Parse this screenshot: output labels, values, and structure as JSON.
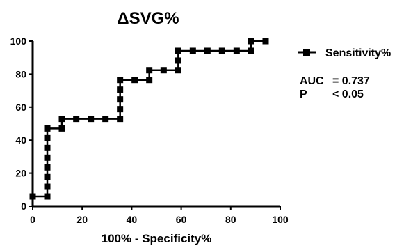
{
  "chart_data": {
    "type": "line",
    "title": "ΔSVG%",
    "xlabel": "100% - Specificity%",
    "ylabel": "",
    "xlim": [
      0,
      100
    ],
    "ylim": [
      0,
      100
    ],
    "x_ticks": [
      0,
      20,
      40,
      60,
      80,
      100
    ],
    "y_ticks": [
      0,
      20,
      40,
      60,
      80,
      100
    ],
    "grid": false,
    "legend_position": "right",
    "color": "#000000",
    "series": [
      {
        "name": "Sensitivity%",
        "step": true,
        "x": [
          0,
          5.9,
          5.9,
          5.9,
          5.9,
          5.9,
          5.9,
          5.9,
          5.9,
          11.8,
          11.8,
          17.6,
          23.5,
          29.4,
          35.3,
          35.3,
          35.3,
          35.3,
          35.3,
          41.2,
          47.1,
          47.1,
          52.9,
          58.8,
          58.8,
          58.8,
          64.7,
          70.6,
          76.5,
          82.4,
          88.2,
          88.2,
          94.1
        ],
        "y": [
          5.9,
          5.9,
          11.8,
          17.6,
          23.5,
          29.4,
          35.3,
          41.2,
          47.1,
          47.1,
          52.9,
          52.9,
          52.9,
          52.9,
          52.9,
          58.8,
          64.7,
          70.6,
          76.5,
          76.5,
          76.5,
          82.4,
          82.4,
          82.4,
          88.2,
          94.1,
          94.1,
          94.1,
          94.1,
          94.1,
          94.1,
          100,
          100
        ]
      }
    ],
    "annotations": [
      {
        "label": "AUC",
        "value": "= 0.737"
      },
      {
        "label": "P",
        "value": "< 0.05"
      }
    ]
  }
}
